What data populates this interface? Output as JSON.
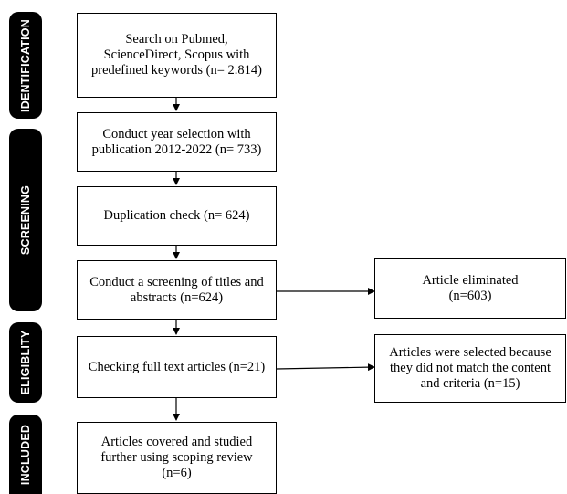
{
  "phases": {
    "identification": "IDENTIFICATION",
    "screening": "SCREENING",
    "eligibility": "ELIGIBLITY",
    "included": "INCLUDED"
  },
  "boxes": {
    "search": "Search on Pubmed,\nScienceDirect, Scopus with\npredefined keywords (n= 2.814)",
    "year_selection": "Conduct year selection with\npublication 2012-2022 (n= 733)",
    "duplication": "Duplication check (n= 624)",
    "screening_titles": "Conduct a screening of titles and\nabstracts (n=624)",
    "eliminated": "Article eliminated\n(n=603)",
    "full_text": "Checking full text articles (n=21)",
    "excluded": "Articles were selected because\nthey did not match the content\nand criteria (n=15)",
    "included": "Articles covered and studied\nfurther using scoping review\n(n=6)"
  }
}
